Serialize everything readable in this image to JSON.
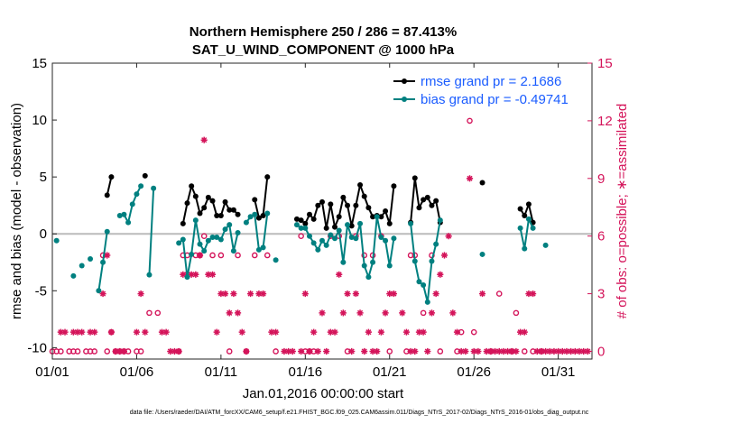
{
  "chart_data": {
    "type": "line",
    "title": "Northern Hemisphere 250 / 286 = 87.413%",
    "subtitle": "SAT_U_WIND_COMPONENT @ 1000 hPa",
    "xlabel": "Jan.01,2016 00:00:00 start",
    "ylabel": "rmse and bias (model - observation)",
    "y2label": "# of obs: o=possible; ∗=assimilated",
    "footnote": "data file: /Users/raeder/DAI/ATM_forcXX/CAM6_setup/f.e21.FHIST_BGC.f09_025.CAM6assim.011/Diags_NTrS_2017-02/Diags_NTrS_2016-01/obs_diag_output.nc",
    "xlim": [
      0,
      32
    ],
    "ylim": [
      -11,
      15
    ],
    "y2lim": [
      -0.4,
      15
    ],
    "xticks": [
      0,
      5,
      10,
      15,
      20,
      25,
      30
    ],
    "xtick_labels": [
      "01/01",
      "01/06",
      "01/11",
      "01/16",
      "01/21",
      "01/26",
      "01/31"
    ],
    "yticks": [
      -10,
      -5,
      0,
      5,
      10,
      15
    ],
    "ytick_labels": [
      "-10",
      "-5",
      "0",
      "5",
      "10",
      "15"
    ],
    "y2ticks": [
      0,
      3,
      6,
      9,
      12,
      15
    ],
    "y2tick_labels": [
      "0",
      "3",
      "6",
      "9",
      "12",
      "15"
    ],
    "zero_line": 0,
    "legend": {
      "position": "top-right",
      "entries": [
        "rmse grand pr = 2.1686",
        "bias grand pr = -0.49741"
      ]
    },
    "colors": {
      "rmse": "#000000",
      "bias": "#008080",
      "obs": "#d4145a",
      "zero": "#bbbbbb"
    },
    "series": [
      {
        "name": "rmse",
        "segments": [
          [
            [
              3.25,
              3.4
            ],
            [
              3.5,
              5.0
            ]
          ],
          [
            [
              5.5,
              5.1
            ]
          ],
          [
            [
              7.75,
              0.9
            ],
            [
              8.0,
              2.7
            ],
            [
              8.25,
              4.2
            ],
            [
              8.5,
              3.3
            ],
            [
              8.75,
              1.8
            ],
            [
              9.0,
              2.3
            ],
            [
              9.25,
              3.2
            ],
            [
              9.5,
              2.9
            ],
            [
              9.75,
              1.6
            ],
            [
              10.0,
              1.6
            ],
            [
              10.25,
              2.8
            ],
            [
              10.5,
              2.1
            ],
            [
              10.75,
              2.1
            ],
            [
              11.0,
              1.7
            ]
          ],
          [
            [
              12.0,
              3.0
            ],
            [
              12.25,
              1.4
            ],
            [
              12.5,
              1.6
            ],
            [
              12.75,
              5.0
            ]
          ],
          [
            [
              14.5,
              1.3
            ],
            [
              14.75,
              1.2
            ],
            [
              15.0,
              0.9
            ],
            [
              15.25,
              1.7
            ],
            [
              15.5,
              1.3
            ],
            [
              15.75,
              2.5
            ],
            [
              16.0,
              2.8
            ],
            [
              16.25,
              0.5
            ],
            [
              16.5,
              2.6
            ],
            [
              16.75,
              0.6
            ],
            [
              17.0,
              1.5
            ],
            [
              17.25,
              3.2
            ],
            [
              17.5,
              2.5
            ],
            [
              17.75,
              0.7
            ],
            [
              18.0,
              2.5
            ],
            [
              18.25,
              4.3
            ],
            [
              18.5,
              3.3
            ],
            [
              18.75,
              2.3
            ],
            [
              19.0,
              1.5
            ],
            [
              19.25,
              1.6
            ],
            [
              19.5,
              1.5
            ],
            [
              19.75,
              2.0
            ],
            [
              20.0,
              0.9
            ],
            [
              20.25,
              4.2
            ]
          ],
          [
            [
              21.25,
              1.0
            ],
            [
              21.5,
              4.9
            ],
            [
              21.75,
              2.3
            ],
            [
              22.0,
              3.0
            ],
            [
              22.25,
              3.2
            ],
            [
              22.5,
              2.5
            ],
            [
              22.75,
              2.9
            ],
            [
              23.0,
              1.0
            ]
          ],
          [
            [
              25.5,
              4.5
            ]
          ],
          [
            [
              27.75,
              2.2
            ],
            [
              28.0,
              1.6
            ],
            [
              28.25,
              2.6
            ],
            [
              28.5,
              1.0
            ]
          ]
        ]
      },
      {
        "name": "bias",
        "segments": [
          [
            [
              0.25,
              -0.6
            ]
          ],
          [
            [
              1.25,
              -3.7
            ]
          ],
          [
            [
              1.75,
              -2.8
            ]
          ],
          [
            [
              2.25,
              -2.2
            ]
          ],
          [
            [
              2.75,
              -5.0
            ],
            [
              3.0,
              -2.5
            ],
            [
              3.25,
              0.2
            ]
          ],
          [
            [
              4.0,
              1.6
            ],
            [
              4.25,
              1.7
            ],
            [
              4.5,
              1.0
            ],
            [
              4.75,
              2.6
            ],
            [
              5.0,
              3.5
            ],
            [
              5.25,
              4.2
            ]
          ],
          [
            [
              5.75,
              -3.6
            ],
            [
              6.0,
              4.0
            ]
          ],
          [
            [
              7.5,
              -0.8
            ],
            [
              7.75,
              -0.5
            ],
            [
              8.0,
              -3.8
            ],
            [
              8.25,
              -1.8
            ],
            [
              8.5,
              1.2
            ],
            [
              8.75,
              -0.9
            ],
            [
              9.0,
              -1.5
            ],
            [
              9.25,
              -0.6
            ],
            [
              9.5,
              -0.3
            ],
            [
              9.75,
              -0.3
            ],
            [
              10.0,
              -0.5
            ],
            [
              10.25,
              0.4
            ],
            [
              10.5,
              0.8
            ],
            [
              10.75,
              -1.5
            ],
            [
              11.0,
              0.1
            ]
          ],
          [
            [
              11.5,
              1.0
            ],
            [
              11.75,
              1.5
            ],
            [
              12.0,
              1.7
            ],
            [
              12.25,
              -1.4
            ],
            [
              12.5,
              -1.2
            ],
            [
              12.75,
              1.8
            ]
          ],
          [
            [
              13.25,
              -2.3
            ]
          ],
          [
            [
              14.5,
              0.8
            ],
            [
              14.75,
              0.5
            ],
            [
              15.0,
              0.5
            ],
            [
              15.25,
              -0.2
            ],
            [
              15.5,
              -0.8
            ],
            [
              15.75,
              -1.4
            ],
            [
              16.0,
              -0.6
            ],
            [
              16.25,
              -1.0
            ],
            [
              16.5,
              -0.1
            ],
            [
              16.75,
              -0.4
            ],
            [
              17.0,
              0.3
            ],
            [
              17.25,
              -2.5
            ],
            [
              17.5,
              0.8
            ],
            [
              17.75,
              -0.3
            ],
            [
              18.0,
              -0.4
            ],
            [
              18.25,
              0.9
            ],
            [
              18.5,
              -2.8
            ],
            [
              18.75,
              -3.8
            ],
            [
              19.0,
              -2.5
            ],
            [
              19.25,
              1.5
            ],
            [
              19.5,
              -0.3
            ],
            [
              19.75,
              -0.6
            ],
            [
              20.0,
              -2.8
            ],
            [
              20.25,
              -0.4
            ]
          ],
          [
            [
              21.25,
              0.9
            ],
            [
              21.5,
              -2.4
            ],
            [
              21.75,
              -4.2
            ],
            [
              22.0,
              -4.5
            ],
            [
              22.25,
              -6.0
            ],
            [
              22.5,
              -2.4
            ],
            [
              22.75,
              -0.9
            ],
            [
              23.0,
              1.2
            ]
          ],
          [
            [
              25.5,
              -1.8
            ]
          ],
          [
            [
              27.75,
              0.5
            ],
            [
              28.0,
              -1.3
            ],
            [
              28.25,
              1.3
            ],
            [
              28.5,
              0.5
            ]
          ],
          [
            [
              29.25,
              -1.0
            ]
          ]
        ]
      }
    ],
    "obs_possible": [
      [
        0.0,
        0
      ],
      [
        0.25,
        0
      ],
      [
        0.5,
        0
      ],
      [
        1.0,
        0
      ],
      [
        1.25,
        0
      ],
      [
        1.5,
        0
      ],
      [
        2.0,
        0
      ],
      [
        2.25,
        0
      ],
      [
        2.5,
        0
      ],
      [
        3.0,
        5
      ],
      [
        3.25,
        0
      ],
      [
        3.5,
        1
      ],
      [
        3.75,
        0
      ],
      [
        4.0,
        0
      ],
      [
        4.25,
        0
      ],
      [
        4.5,
        0
      ],
      [
        5.0,
        0
      ],
      [
        5.25,
        0
      ],
      [
        5.75,
        2
      ],
      [
        6.25,
        2
      ],
      [
        7.5,
        0
      ],
      [
        7.75,
        5
      ],
      [
        8.0,
        5
      ],
      [
        8.5,
        5
      ],
      [
        8.75,
        5
      ],
      [
        9.0,
        6
      ],
      [
        9.5,
        5
      ],
      [
        10.0,
        5
      ],
      [
        10.5,
        0
      ],
      [
        11.0,
        5
      ],
      [
        11.5,
        0
      ],
      [
        12.0,
        5
      ],
      [
        12.75,
        5
      ],
      [
        13.25,
        0
      ],
      [
        14.75,
        6
      ],
      [
        15.0,
        0
      ],
      [
        15.25,
        0
      ],
      [
        15.5,
        0
      ],
      [
        16.5,
        6
      ],
      [
        17.0,
        6
      ],
      [
        17.5,
        0
      ],
      [
        18.0,
        6
      ],
      [
        18.5,
        5
      ],
      [
        19.0,
        5
      ],
      [
        19.5,
        6
      ],
      [
        20.0,
        0
      ],
      [
        21.0,
        0
      ],
      [
        21.25,
        5
      ],
      [
        21.5,
        5
      ],
      [
        22.0,
        2
      ],
      [
        22.5,
        5
      ],
      [
        23.0,
        0
      ],
      [
        24.0,
        0
      ],
      [
        24.25,
        1
      ],
      [
        24.75,
        12
      ],
      [
        25.0,
        1
      ],
      [
        26.0,
        0
      ],
      [
        26.5,
        3
      ],
      [
        27.25,
        0
      ],
      [
        27.5,
        2
      ],
      [
        28.0,
        0
      ],
      [
        28.5,
        0
      ],
      [
        29.0,
        0
      ]
    ],
    "obs_assimilated": [
      [
        0.5,
        1
      ],
      [
        0.75,
        1
      ],
      [
        1.25,
        1
      ],
      [
        1.5,
        1
      ],
      [
        1.75,
        1
      ],
      [
        2.25,
        1
      ],
      [
        2.5,
        1
      ],
      [
        3.0,
        3
      ],
      [
        3.25,
        5
      ],
      [
        3.5,
        1
      ],
      [
        3.75,
        0
      ],
      [
        4.0,
        0
      ],
      [
        4.25,
        0
      ],
      [
        5.0,
        1
      ],
      [
        5.25,
        3
      ],
      [
        5.5,
        1
      ],
      [
        6.5,
        1
      ],
      [
        6.75,
        1
      ],
      [
        7.0,
        0
      ],
      [
        7.25,
        0
      ],
      [
        7.5,
        0
      ],
      [
        7.75,
        4
      ],
      [
        8.0,
        4
      ],
      [
        8.25,
        4
      ],
      [
        8.5,
        4
      ],
      [
        8.75,
        5
      ],
      [
        9.0,
        11
      ],
      [
        9.25,
        4
      ],
      [
        9.5,
        4
      ],
      [
        9.75,
        1
      ],
      [
        10.0,
        3
      ],
      [
        10.25,
        3
      ],
      [
        10.5,
        2
      ],
      [
        10.75,
        3
      ],
      [
        11.0,
        2
      ],
      [
        11.25,
        1
      ],
      [
        11.5,
        0
      ],
      [
        11.75,
        3
      ],
      [
        12.25,
        3
      ],
      [
        12.5,
        3
      ],
      [
        13.0,
        1
      ],
      [
        13.25,
        1
      ],
      [
        13.75,
        0
      ],
      [
        14.0,
        0
      ],
      [
        14.25,
        0
      ],
      [
        14.75,
        0
      ],
      [
        15.0,
        3
      ],
      [
        15.25,
        0
      ],
      [
        15.5,
        1
      ],
      [
        15.75,
        0
      ],
      [
        16.0,
        2
      ],
      [
        16.25,
        0
      ],
      [
        16.5,
        1
      ],
      [
        16.75,
        1
      ],
      [
        17.0,
        4
      ],
      [
        17.25,
        2
      ],
      [
        17.5,
        3
      ],
      [
        17.75,
        0
      ],
      [
        18.0,
        3
      ],
      [
        18.25,
        2
      ],
      [
        18.5,
        0
      ],
      [
        18.75,
        1
      ],
      [
        19.0,
        0
      ],
      [
        19.25,
        0
      ],
      [
        19.5,
        1
      ],
      [
        19.75,
        2
      ],
      [
        20.0,
        3
      ],
      [
        20.25,
        3
      ],
      [
        20.75,
        2
      ],
      [
        21.0,
        1
      ],
      [
        21.25,
        0
      ],
      [
        21.5,
        0
      ],
      [
        21.75,
        1
      ],
      [
        22.0,
        1
      ],
      [
        22.25,
        0
      ],
      [
        22.5,
        2
      ],
      [
        22.75,
        3
      ],
      [
        23.0,
        4
      ],
      [
        23.25,
        5
      ],
      [
        23.5,
        6
      ],
      [
        23.75,
        2
      ],
      [
        24.0,
        1
      ],
      [
        24.25,
        0
      ],
      [
        24.5,
        0
      ],
      [
        24.75,
        9
      ],
      [
        25.0,
        0
      ],
      [
        25.25,
        0
      ],
      [
        25.5,
        3
      ],
      [
        25.75,
        0
      ],
      [
        26.0,
        0
      ],
      [
        26.25,
        0
      ],
      [
        26.5,
        0
      ],
      [
        26.75,
        0
      ],
      [
        27.0,
        0
      ],
      [
        27.25,
        0
      ],
      [
        27.5,
        0
      ],
      [
        27.75,
        1
      ],
      [
        28.0,
        1
      ],
      [
        28.25,
        3
      ],
      [
        28.5,
        3
      ],
      [
        28.75,
        0
      ],
      [
        29.0,
        0
      ],
      [
        29.25,
        0
      ],
      [
        29.5,
        0
      ],
      [
        29.75,
        0
      ],
      [
        30.0,
        0
      ],
      [
        30.25,
        0
      ],
      [
        30.5,
        0
      ],
      [
        30.75,
        0
      ],
      [
        31.0,
        0
      ],
      [
        31.25,
        0
      ],
      [
        31.5,
        0
      ],
      [
        31.75,
        0
      ]
    ]
  }
}
